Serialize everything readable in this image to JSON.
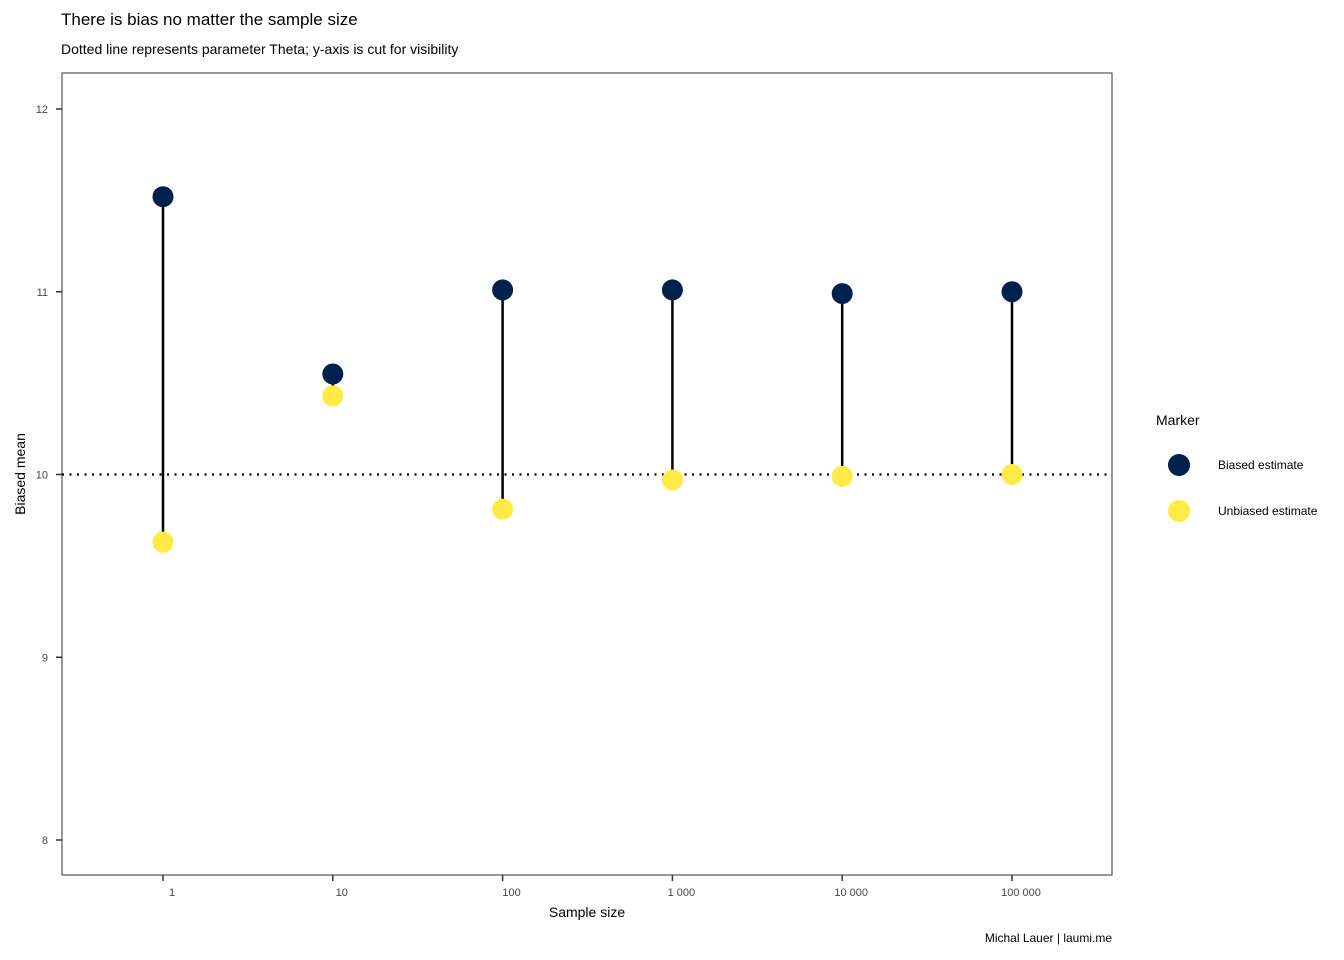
{
  "chart_data": {
    "type": "scatter",
    "title": "There is bias no matter the sample size",
    "subtitle": "Dotted line represents parameter Theta; y-axis is cut for visibility",
    "xlabel": "Sample size",
    "ylabel": "Biased mean",
    "caption": "Michal Lauer | laumi.me",
    "categories": [
      "1",
      "10",
      "100",
      "1 000",
      "10 000",
      "100 000"
    ],
    "ylim": [
      7.8,
      12.2
    ],
    "yticks": [
      8,
      9,
      10,
      11,
      12
    ],
    "reference_line": 10,
    "grid": false,
    "legend_title": "Marker",
    "legend_position": "right",
    "series": [
      {
        "name": "Biased estimate",
        "color": "#00204D",
        "values": [
          11.52,
          10.55,
          11.01,
          11.01,
          10.99,
          11.0
        ]
      },
      {
        "name": "Unbiased estimate",
        "color": "#FFEA46",
        "values": [
          9.63,
          10.43,
          9.81,
          9.97,
          9.99,
          10.0
        ]
      }
    ]
  }
}
